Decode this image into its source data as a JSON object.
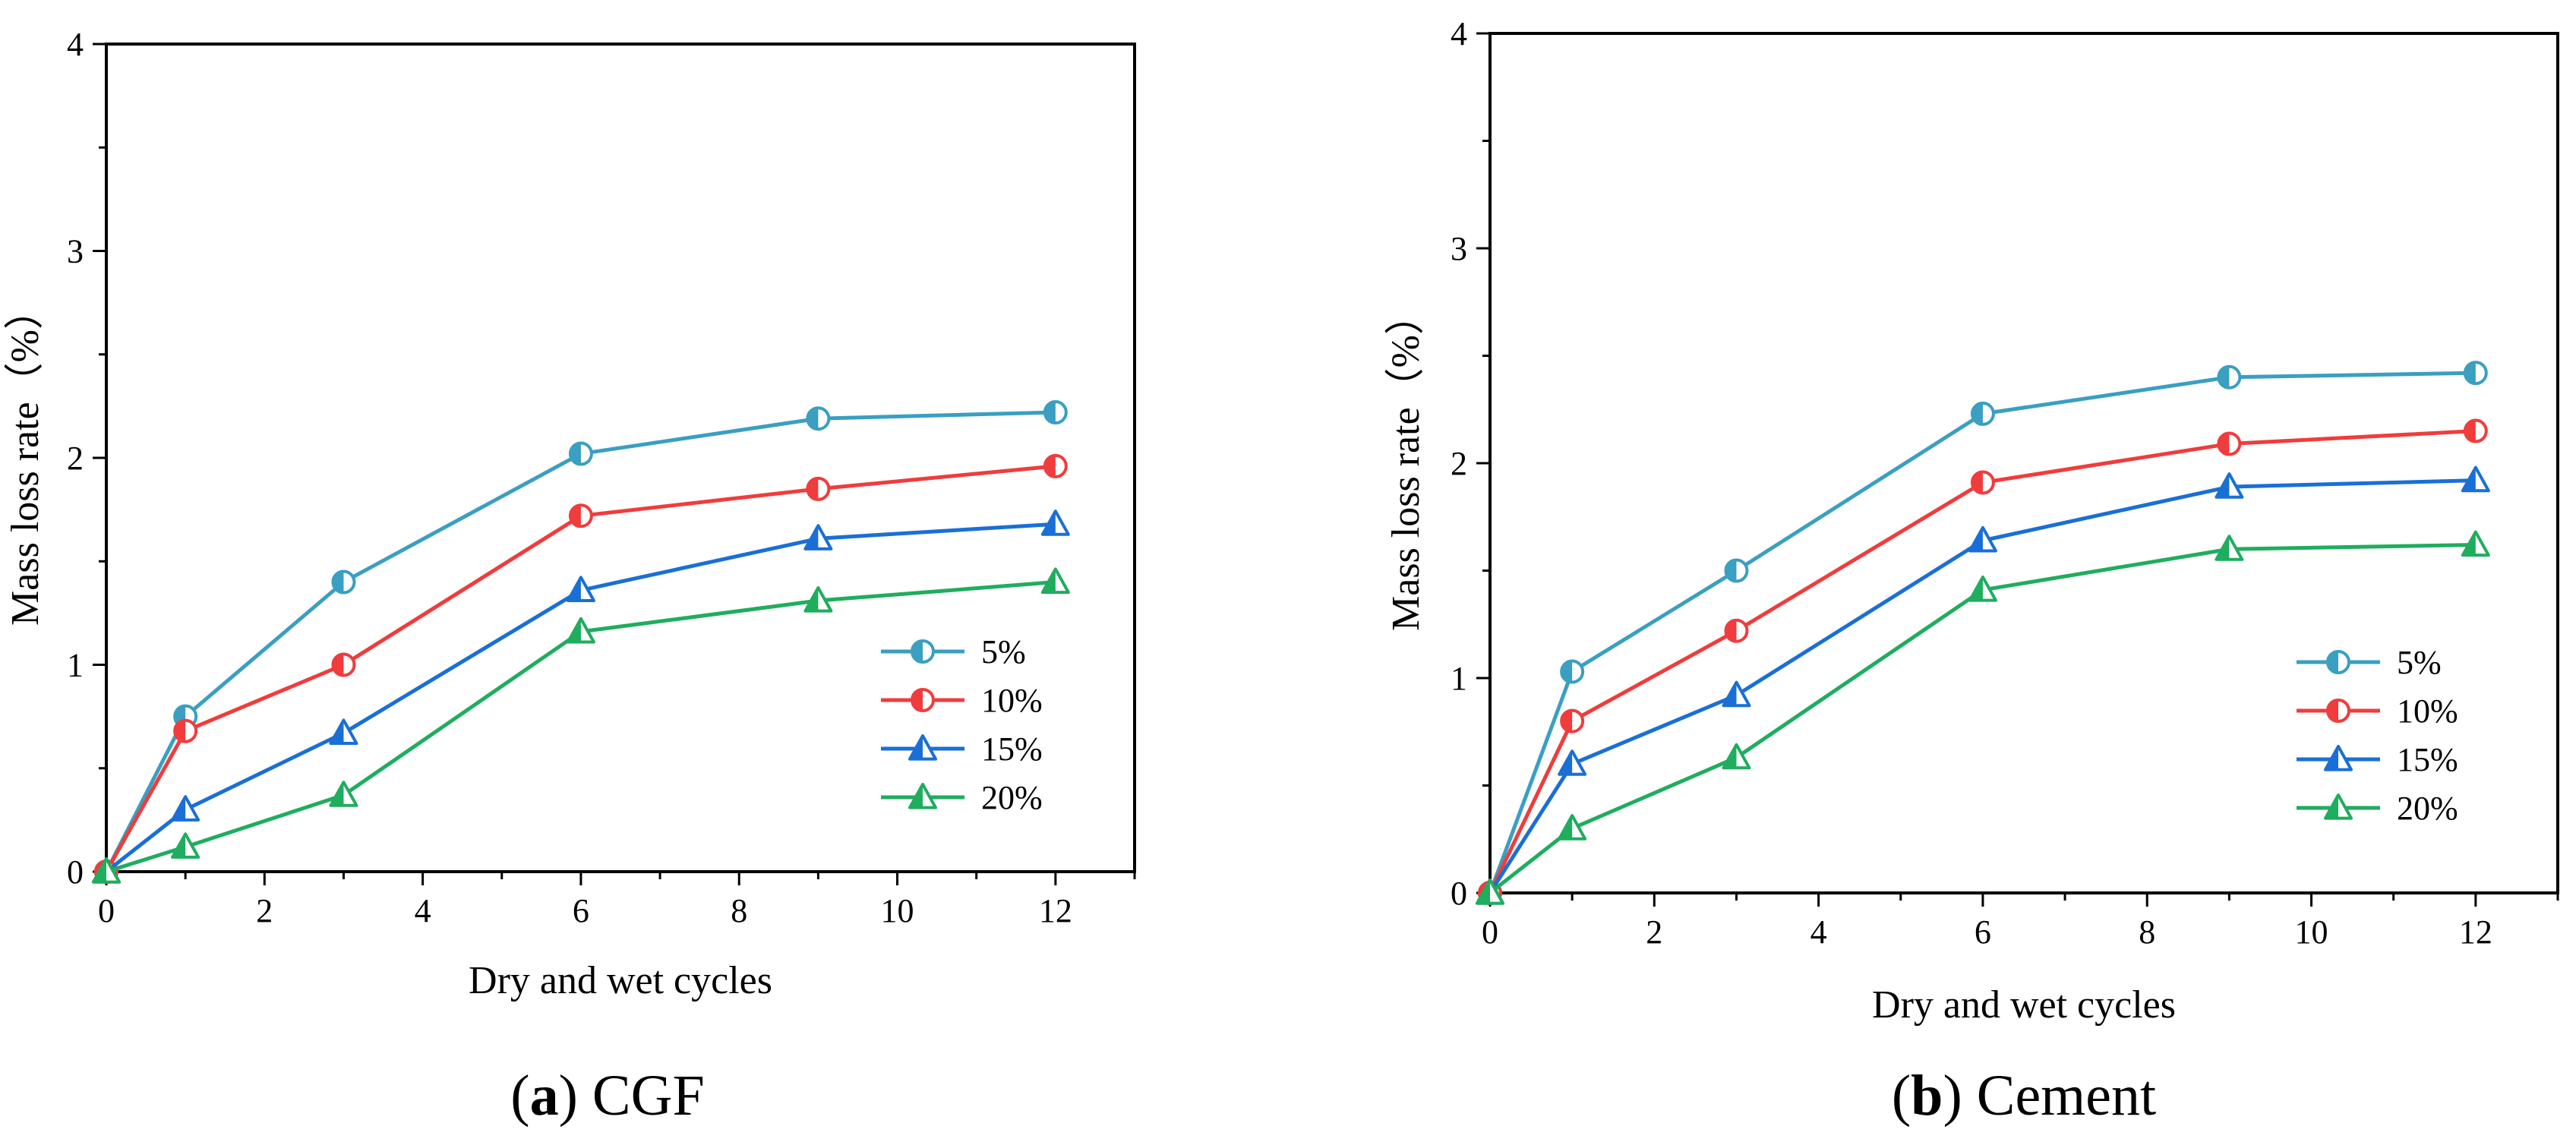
{
  "chart_data": [
    {
      "type": "line",
      "panel_letter": "a",
      "panel_name": "CGF",
      "xlabel": "Dry and wet cycles",
      "ylabel": "Mass loss rate（%）",
      "x": [
        0,
        1,
        3,
        6,
        9,
        12
      ],
      "xlim": [
        0,
        13
      ],
      "ylim": [
        0,
        4
      ],
      "xticks": [
        0,
        2,
        4,
        6,
        8,
        10,
        12
      ],
      "yticks": [
        0,
        1,
        2,
        3,
        4
      ],
      "legend_position": "right-middle",
      "series": [
        {
          "name": "5%",
          "color": "#3a9fc1",
          "marker": "circle",
          "values": [
            0,
            0.75,
            1.4,
            2.02,
            2.19,
            2.22
          ]
        },
        {
          "name": "10%",
          "color": "#f03c3c",
          "marker": "circle",
          "values": [
            0,
            0.68,
            1.0,
            1.72,
            1.85,
            1.96
          ]
        },
        {
          "name": "15%",
          "color": "#1a6fd6",
          "marker": "triangle",
          "values": [
            0,
            0.3,
            0.67,
            1.36,
            1.61,
            1.68
          ]
        },
        {
          "name": "20%",
          "color": "#1fad5e",
          "marker": "triangle",
          "values": [
            0,
            0.12,
            0.37,
            1.16,
            1.31,
            1.4
          ]
        }
      ]
    },
    {
      "type": "line",
      "panel_letter": "b",
      "panel_name": "Cement",
      "xlabel": "Dry and wet cycles",
      "ylabel": "Mass loss rate（%）",
      "x": [
        0,
        1,
        3,
        6,
        9,
        12
      ],
      "xlim": [
        0,
        13
      ],
      "ylim": [
        0,
        4
      ],
      "xticks": [
        0,
        2,
        4,
        6,
        8,
        10,
        12
      ],
      "yticks": [
        0,
        1,
        2,
        3,
        4
      ],
      "legend_position": "right-middle",
      "series": [
        {
          "name": "5%",
          "color": "#3a9fc1",
          "marker": "circle",
          "values": [
            0,
            1.03,
            1.5,
            2.23,
            2.4,
            2.42
          ]
        },
        {
          "name": "10%",
          "color": "#f03c3c",
          "marker": "circle",
          "values": [
            0,
            0.8,
            1.22,
            1.91,
            2.09,
            2.15
          ]
        },
        {
          "name": "15%",
          "color": "#1a6fd6",
          "marker": "triangle",
          "values": [
            0,
            0.6,
            0.92,
            1.64,
            1.89,
            1.92
          ]
        },
        {
          "name": "20%",
          "color": "#1fad5e",
          "marker": "triangle",
          "values": [
            0,
            0.3,
            0.63,
            1.41,
            1.6,
            1.62
          ]
        }
      ]
    }
  ]
}
